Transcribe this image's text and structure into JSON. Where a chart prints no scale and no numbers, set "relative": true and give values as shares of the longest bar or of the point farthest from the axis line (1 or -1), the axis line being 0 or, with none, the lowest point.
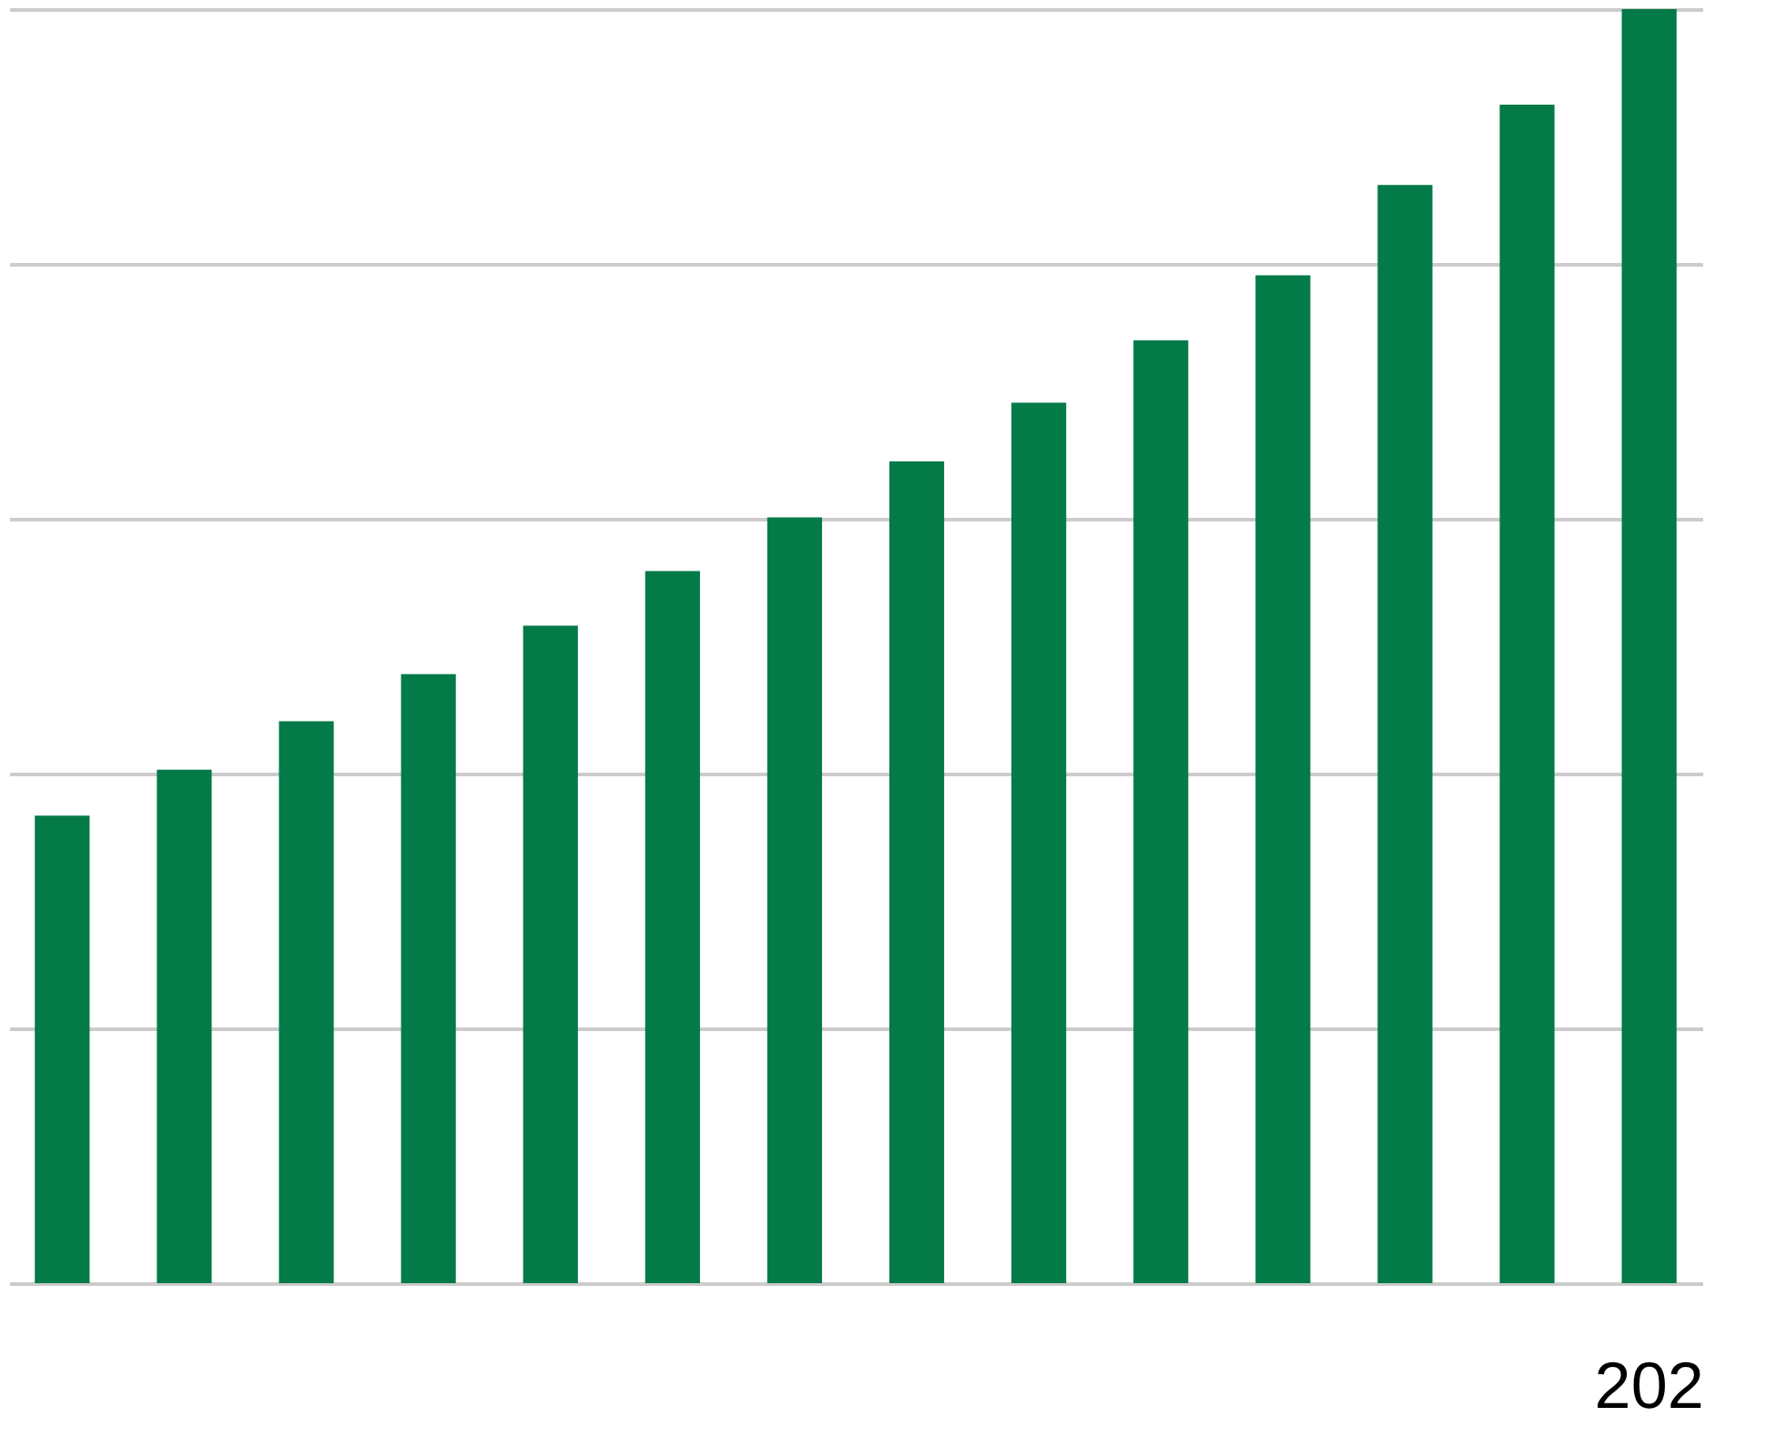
{
  "chart_data": {
    "type": "bar",
    "relative": true,
    "grid": "y",
    "categories": [
      null,
      null,
      null,
      null,
      null,
      null,
      null,
      null,
      null,
      null,
      null,
      null,
      null,
      "202"
    ],
    "values": [
      0.367,
      0.403,
      0.441,
      0.478,
      0.516,
      0.559,
      0.601,
      0.645,
      0.691,
      0.74,
      0.791,
      0.862,
      0.925,
      1
    ],
    "color": "#037a47"
  }
}
